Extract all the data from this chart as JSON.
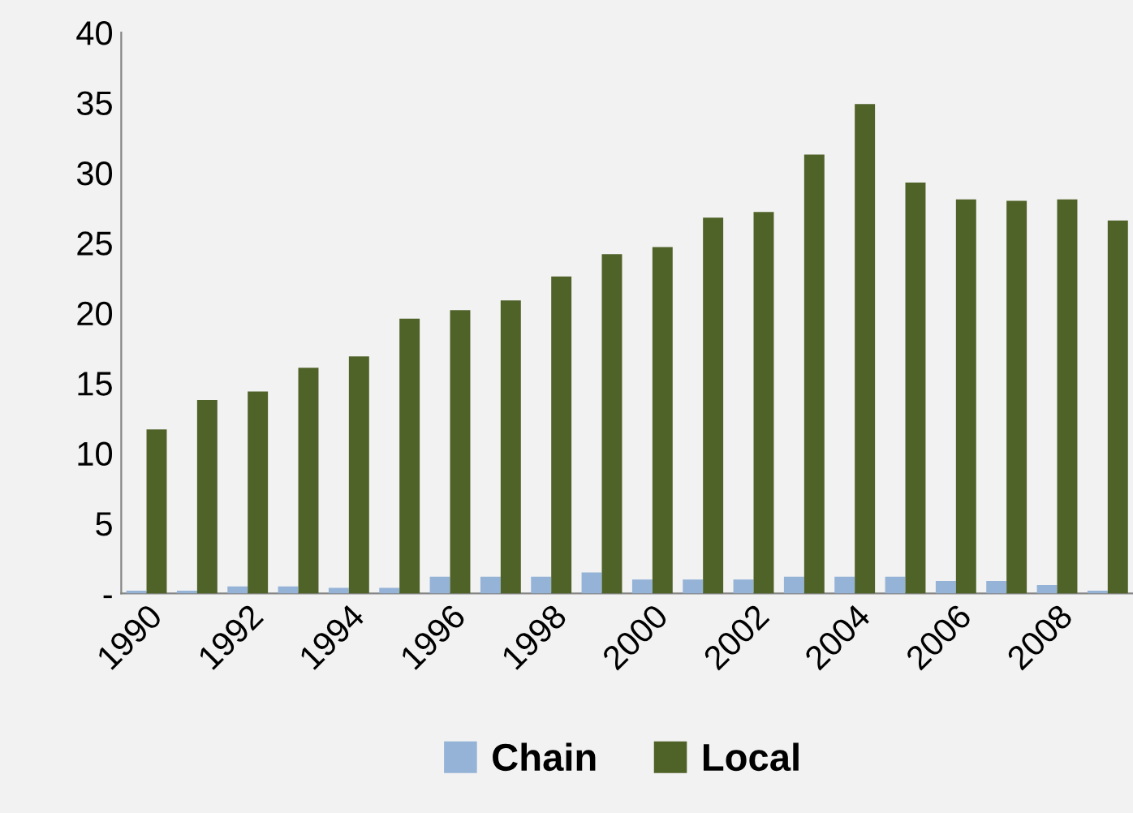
{
  "chart_data": {
    "type": "bar",
    "categories": [
      "1990",
      null,
      "1992",
      null,
      "1994",
      null,
      "1996",
      null,
      "1998",
      null,
      "2000",
      null,
      "2002",
      null,
      "2004",
      null,
      "2006",
      null,
      "2008",
      null
    ],
    "series": [
      {
        "name": "Chain",
        "color": "#95b3d7",
        "values": [
          0.2,
          0.2,
          0.5,
          0.5,
          0.4,
          0.4,
          1.2,
          1.2,
          1.2,
          1.5,
          1.0,
          1.0,
          1.0,
          1.2,
          1.2,
          1.2,
          0.9,
          0.9,
          0.6,
          0.2
        ]
      },
      {
        "name": "Local",
        "color": "#4f6228",
        "values": [
          11.7,
          13.8,
          14.4,
          16.1,
          16.9,
          19.6,
          20.2,
          20.9,
          22.6,
          24.2,
          24.7,
          26.8,
          27.2,
          31.3,
          34.9,
          29.3,
          28.1,
          28.0,
          28.1,
          26.6
        ]
      }
    ],
    "ylim": [
      0,
      40
    ],
    "yticks": [
      {
        "value": 0,
        "label": "-"
      },
      5,
      10,
      15,
      20,
      25,
      30,
      35,
      40
    ],
    "grid": false,
    "legend": "bottom"
  }
}
